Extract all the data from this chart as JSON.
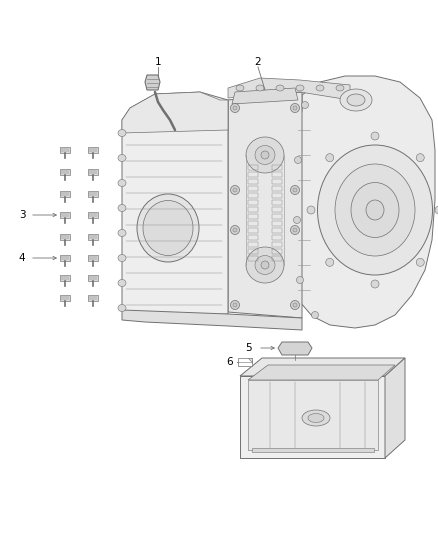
{
  "bg_color": "#ffffff",
  "lc": "#707070",
  "lc2": "#909090",
  "lc_light": "#aaaaaa",
  "fc_light": "#f0f0f0",
  "fc_mid": "#e4e4e4",
  "fc_dark": "#d8d8d8",
  "fc_darker": "#cccccc",
  "label_color": "#000000",
  "figsize": [
    4.38,
    5.33
  ],
  "dpi": 100
}
